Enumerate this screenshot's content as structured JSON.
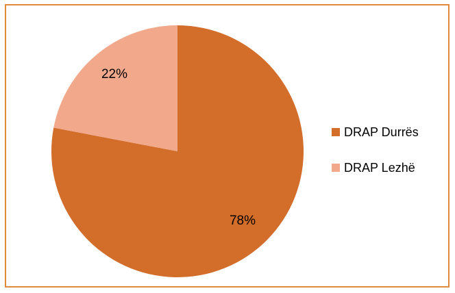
{
  "chart_data": {
    "type": "pie",
    "title": "",
    "categories": [
      "DRAP Durrës",
      "DRAP Lezhë"
    ],
    "values": [
      78,
      22
    ],
    "data_labels": [
      "78%",
      "22%"
    ],
    "colors": [
      "#d26d2a",
      "#f2a98b"
    ],
    "frame_color": "#e08a3c",
    "legend_position": "right"
  }
}
